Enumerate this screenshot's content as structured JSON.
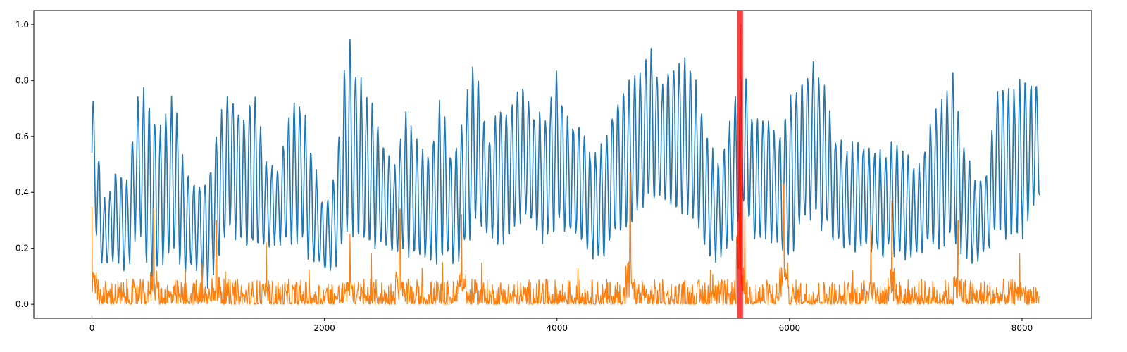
{
  "chart_data": {
    "type": "line",
    "title": "",
    "xlabel": "",
    "ylabel": "",
    "xlim": [
      -500,
      8600
    ],
    "ylim": [
      -0.05,
      1.05
    ],
    "x_ticks": [
      0,
      2000,
      4000,
      6000,
      8000
    ],
    "y_ticks": [
      0.0,
      0.2,
      0.4,
      0.6,
      0.8,
      1.0
    ],
    "x_tick_labels": [
      "0",
      "2000",
      "4000",
      "6000",
      "8000"
    ],
    "y_tick_labels": [
      "0.0",
      "0.2",
      "0.4",
      "0.6",
      "0.8",
      "1.0"
    ],
    "grid": false,
    "legend": "none",
    "highlight_span": {
      "x0": 5550,
      "x1": 5600,
      "color": "#ff0000"
    },
    "series": [
      {
        "color": "#1f77b4",
        "x": [
          0,
          100,
          200,
          300,
          400,
          500,
          600,
          700,
          800,
          900,
          1000,
          1100,
          1200,
          1300,
          1400,
          1500,
          1600,
          1700,
          1800,
          1900,
          2000,
          2100,
          2200,
          2300,
          2400,
          2500,
          2600,
          2700,
          2800,
          2900,
          3000,
          3100,
          3200,
          3300,
          3400,
          3500,
          3600,
          3700,
          3800,
          3900,
          4000,
          4100,
          4200,
          4300,
          4400,
          4500,
          4600,
          4700,
          4800,
          4900,
          5000,
          5100,
          5200,
          5300,
          5400,
          5500,
          5600,
          5700,
          5800,
          5900,
          6000,
          6100,
          6200,
          6300,
          6400,
          6500,
          6600,
          6700,
          6800,
          6900,
          7000,
          7100,
          7200,
          7300,
          7400,
          7500,
          7600,
          7700,
          7800,
          7900,
          8000,
          8150
        ],
        "upper": [
          0.79,
          0.38,
          0.49,
          0.45,
          0.8,
          0.75,
          0.65,
          0.79,
          0.5,
          0.45,
          0.48,
          0.7,
          0.8,
          0.7,
          0.8,
          0.52,
          0.5,
          0.72,
          0.75,
          0.55,
          0.35,
          0.5,
          1.0,
          0.83,
          0.75,
          0.6,
          0.5,
          0.71,
          0.6,
          0.55,
          0.76,
          0.55,
          0.72,
          0.91,
          0.6,
          0.75,
          0.72,
          0.8,
          0.72,
          0.7,
          0.85,
          0.68,
          0.68,
          0.55,
          0.6,
          0.75,
          0.8,
          0.85,
          0.96,
          0.8,
          0.91,
          0.9,
          0.8,
          0.6,
          0.5,
          0.7,
          0.9,
          0.65,
          0.73,
          0.6,
          0.76,
          0.8,
          0.9,
          0.8,
          0.6,
          0.57,
          0.6,
          0.57,
          0.55,
          0.6,
          0.55,
          0.5,
          0.65,
          0.75,
          0.85,
          0.6,
          0.45,
          0.5,
          0.82,
          0.78,
          0.82,
          0.82
        ],
        "lower": [
          0.29,
          0.1,
          0.15,
          0.1,
          0.25,
          0.05,
          0.12,
          0.15,
          0.1,
          0.1,
          0.05,
          0.15,
          0.22,
          0.2,
          0.15,
          0.2,
          0.2,
          0.18,
          0.22,
          0.12,
          0.1,
          0.12,
          0.2,
          0.22,
          0.18,
          0.18,
          0.16,
          0.15,
          0.14,
          0.13,
          0.15,
          0.12,
          0.15,
          0.25,
          0.22,
          0.2,
          0.22,
          0.28,
          0.25,
          0.2,
          0.25,
          0.22,
          0.2,
          0.15,
          0.15,
          0.22,
          0.25,
          0.3,
          0.35,
          0.35,
          0.3,
          0.3,
          0.28,
          0.15,
          0.15,
          0.2,
          0.3,
          0.2,
          0.22,
          0.2,
          0.15,
          0.25,
          0.28,
          0.25,
          0.2,
          0.18,
          0.18,
          0.17,
          0.15,
          0.17,
          0.15,
          0.15,
          0.18,
          0.18,
          0.2,
          0.16,
          0.12,
          0.16,
          0.25,
          0.22,
          0.22,
          0.38
        ]
      },
      {
        "color": "#ff7f0e",
        "baseline": 0.03,
        "noise_max": 0.09,
        "spikes": [
          {
            "x": 0,
            "y": 0.35
          },
          {
            "x": 530,
            "y": 0.34
          },
          {
            "x": 1070,
            "y": 0.3
          },
          {
            "x": 1500,
            "y": 0.22
          },
          {
            "x": 2220,
            "y": 0.25
          },
          {
            "x": 2650,
            "y": 0.34
          },
          {
            "x": 3180,
            "y": 0.32
          },
          {
            "x": 4630,
            "y": 0.47
          },
          {
            "x": 5580,
            "y": 1.0
          },
          {
            "x": 5950,
            "y": 0.43
          },
          {
            "x": 6700,
            "y": 0.28
          },
          {
            "x": 6880,
            "y": 0.37
          },
          {
            "x": 7450,
            "y": 0.3
          },
          {
            "x": 7980,
            "y": 0.18
          }
        ]
      }
    ]
  }
}
